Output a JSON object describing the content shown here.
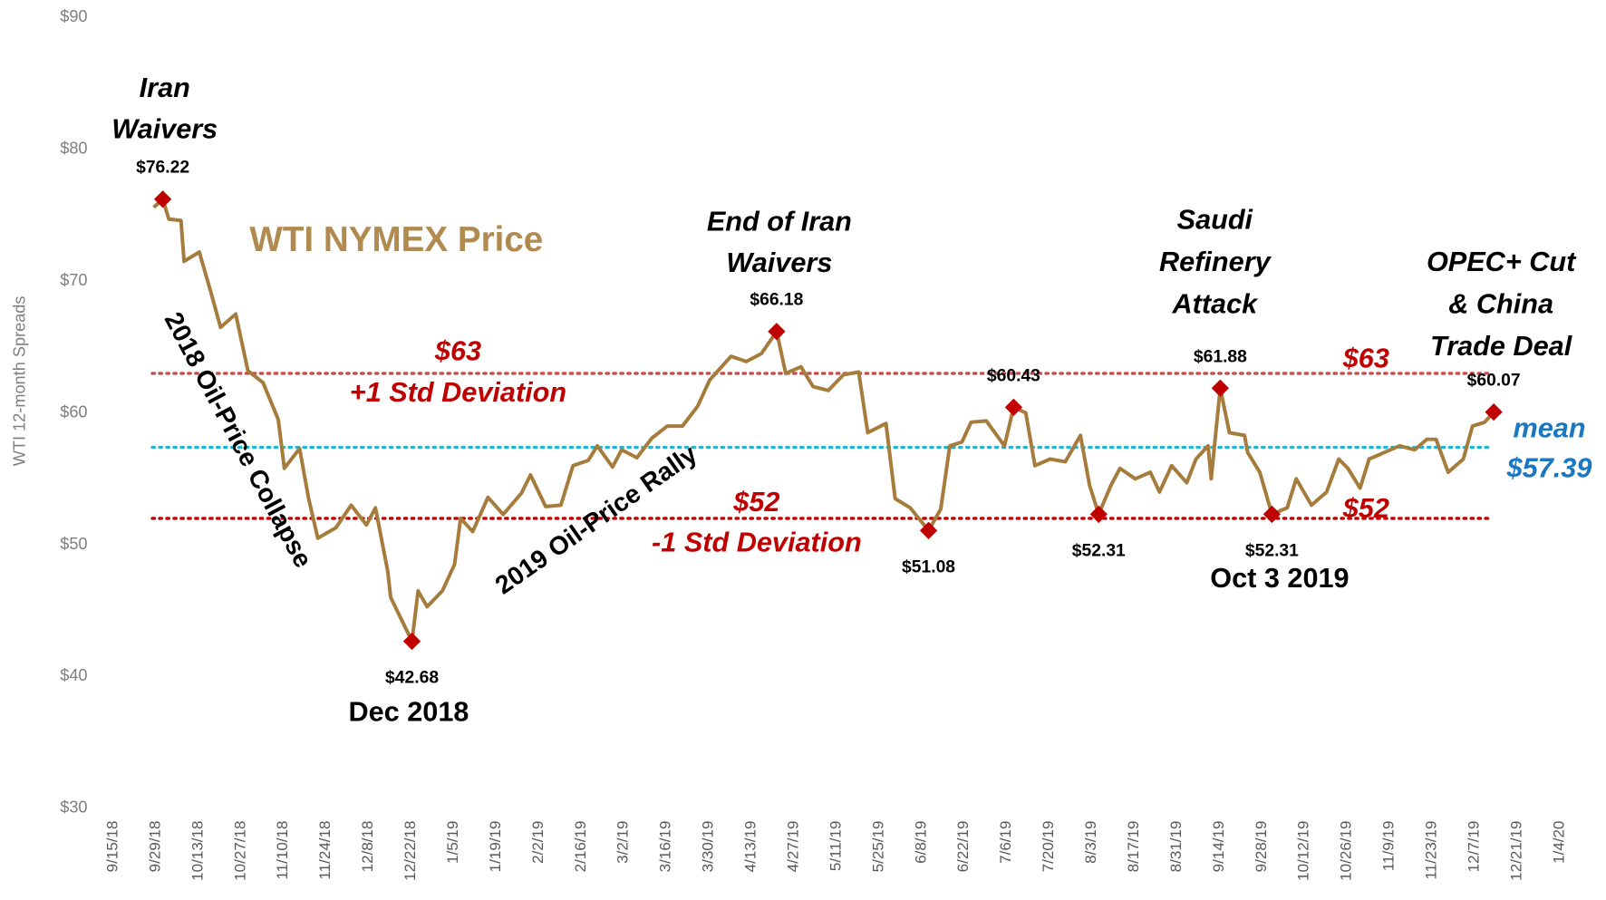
{
  "chart_data": {
    "type": "line",
    "title": "WTI NYMEX Price",
    "y_label": "WTI 12-month Spreads",
    "ylim": [
      30,
      90
    ],
    "yticks": [
      {
        "value": 30,
        "label": "$30"
      },
      {
        "value": 40,
        "label": "$40"
      },
      {
        "value": 50,
        "label": "$50"
      },
      {
        "value": 60,
        "label": "$60"
      },
      {
        "value": 70,
        "label": "$70"
      },
      {
        "value": 80,
        "label": "$80"
      },
      {
        "value": 90,
        "label": "$90"
      }
    ],
    "xlim": [
      "9/15/18",
      "1/4/20"
    ],
    "xticks": [
      "9/15/18",
      "9/29/18",
      "10/13/18",
      "10/27/18",
      "11/10/18",
      "11/24/18",
      "12/8/18",
      "12/22/18",
      "1/5/19",
      "1/19/19",
      "2/2/19",
      "2/16/19",
      "3/2/19",
      "3/16/19",
      "3/30/19",
      "4/13/19",
      "4/27/19",
      "5/11/19",
      "5/25/19",
      "6/8/19",
      "6/22/19",
      "7/6/19",
      "7/20/19",
      "8/3/19",
      "8/17/19",
      "8/31/19",
      "9/14/19",
      "9/28/19",
      "10/12/19",
      "10/26/19",
      "11/9/19",
      "11/23/19",
      "12/7/19",
      "12/21/19",
      "1/4/20"
    ],
    "series": [
      {
        "name": "WTI NYMEX Price",
        "color": "#a67c3d",
        "x": [
          "9/30/18",
          "10/3/18",
          "10/5/18",
          "10/9/18",
          "10/10/18",
          "10/15/18",
          "10/19/18",
          "10/22/18",
          "10/27/18",
          "10/31/18",
          "11/5/18",
          "11/10/18",
          "11/12/18",
          "11/17/18",
          "11/20/18",
          "11/23/18",
          "11/29/18",
          "12/4/18",
          "12/9/18",
          "12/12/18",
          "12/16/18",
          "12/17/18",
          "12/24/18",
          "12/26/18",
          "12/29/18",
          "1/3/19",
          "1/7/19",
          "1/9/19",
          "1/13/19",
          "1/18/19",
          "1/23/19",
          "1/29/19",
          "2/1/19",
          "2/6/19",
          "2/11/19",
          "2/15/19",
          "2/20/19",
          "2/23/19",
          "2/28/19",
          "3/3/19",
          "3/8/19",
          "3/13/19",
          "3/18/19",
          "3/23/19",
          "3/28/19",
          "4/1/19",
          "4/8/19",
          "4/13/19",
          "4/18/19",
          "4/23/19",
          "4/26/19",
          "5/1/19",
          "5/5/19",
          "5/10/19",
          "5/15/19",
          "5/20/19",
          "5/23/19",
          "5/29/19",
          "6/1/19",
          "6/6/19",
          "6/12/19",
          "6/16/19",
          "6/19/19",
          "6/23/19",
          "6/26/19",
          "7/1/19",
          "7/7/19",
          "7/10/19",
          "7/14/19",
          "7/17/19",
          "7/22/19",
          "7/27/19",
          "8/1/19",
          "8/4/19",
          "8/7/19",
          "8/11/19",
          "8/14/19",
          "8/19/19",
          "8/24/19",
          "8/27/19",
          "8/31/19",
          "9/5/19",
          "9/8/19",
          "9/12/19",
          "9/13/19",
          "9/16/19",
          "9/19/19",
          "9/24/19",
          "9/25/19",
          "9/29/19",
          "10/3/19",
          "10/8/19",
          "10/11/19",
          "10/16/19",
          "10/21/19",
          "10/25/19",
          "10/28/19",
          "11/1/19",
          "11/4/19",
          "11/9/19",
          "11/14/19",
          "11/19/19",
          "11/23/19",
          "11/26/19",
          "11/30/19",
          "12/5/19",
          "12/8/19",
          "12/12/19",
          "12/15/19"
        ],
        "values": [
          75.6,
          76.22,
          74.7,
          74.6,
          71.5,
          72.2,
          69.0,
          66.5,
          67.5,
          63.2,
          62.3,
          59.5,
          55.8,
          57.3,
          53.5,
          50.5,
          51.3,
          53.0,
          51.5,
          52.8,
          48.0,
          46.0,
          42.68,
          46.5,
          45.3,
          46.5,
          48.5,
          52.0,
          51.0,
          53.6,
          52.3,
          53.9,
          55.3,
          52.9,
          53.0,
          56.0,
          56.4,
          57.5,
          55.9,
          57.2,
          56.6,
          58.1,
          59.0,
          59.0,
          60.5,
          62.5,
          64.3,
          63.9,
          64.5,
          66.18,
          63.0,
          63.5,
          62.0,
          61.7,
          62.9,
          63.1,
          58.5,
          59.2,
          53.5,
          52.8,
          51.08,
          52.7,
          57.5,
          57.8,
          59.3,
          59.4,
          57.5,
          60.43,
          60.0,
          56.0,
          56.5,
          56.3,
          58.3,
          54.5,
          52.31,
          54.5,
          55.8,
          55.0,
          55.5,
          54.0,
          56.0,
          54.7,
          56.5,
          57.5,
          55.0,
          61.88,
          58.5,
          58.3,
          57.0,
          55.5,
          52.31,
          52.8,
          55.0,
          53.0,
          54.0,
          56.5,
          55.8,
          54.3,
          56.5,
          57.0,
          57.5,
          57.2,
          58.0,
          58.0,
          55.5,
          56.5,
          59.0,
          59.3,
          60.07
        ]
      }
    ],
    "points": {
      "color": "#c00000",
      "x": [
        "10/3/18",
        "12/24/18",
        "4/23/19",
        "6/12/19",
        "7/10/19",
        "8/7/19",
        "9/16/19",
        "10/3/19",
        "12/15/19"
      ],
      "values": [
        76.22,
        42.68,
        66.18,
        51.08,
        60.43,
        52.31,
        61.88,
        52.31,
        60.07
      ],
      "value_labels": [
        "$76.22",
        "$42.68",
        "$66.18",
        "$51.08",
        "$60.43",
        "$52.31",
        "$61.88",
        "$52.31",
        "$60.07"
      ]
    },
    "hlines": [
      {
        "value": 63,
        "label": "$63",
        "text": "+1 Std Deviation",
        "color": "#c0504d",
        "label_color": "#c00000"
      },
      {
        "value": 52,
        "label": "$52",
        "text": "-1 Std Deviation",
        "color": "#c00000",
        "label_color": "#c00000"
      },
      {
        "value": 57.39,
        "label": "$57.39",
        "text": "mean",
        "color": "#22b5d8",
        "label_color": "#1a78c2"
      }
    ],
    "annotations": [
      [
        "Iran",
        "Waivers"
      ],
      [
        "End of Iran",
        "Waivers"
      ],
      [
        "Saudi",
        "Refinery",
        "Attack"
      ],
      [
        "OPEC+ Cut",
        "& China",
        "Trade Deal"
      ],
      [
        "Dec 2018"
      ],
      [
        "Oct 3 2019"
      ],
      [
        "2018 Oil-Price Collapse"
      ],
      [
        "2019 Oil-Price Rally"
      ]
    ]
  }
}
